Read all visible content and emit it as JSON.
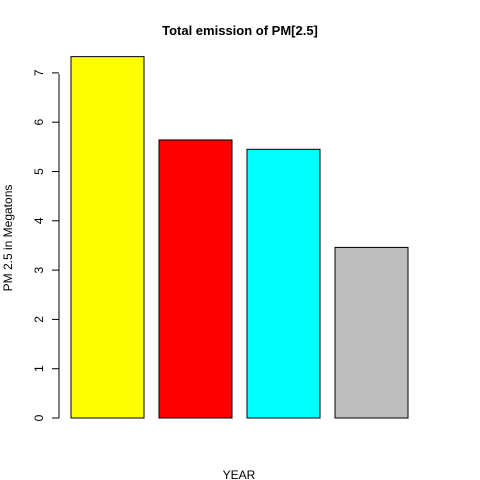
{
  "chart_data": {
    "type": "bar",
    "title": "Total emission of PM[2.5]",
    "xlabel": "YEAR",
    "ylabel": "PM 2.5 in Megatons",
    "values": [
      7.33,
      5.64,
      5.45,
      3.46
    ],
    "colors": [
      "#ffff00",
      "#ff0000",
      "#00ffff",
      "#bebebe"
    ],
    "yticks": [
      0,
      1,
      2,
      3,
      4,
      5,
      6,
      7
    ],
    "ylim": [
      0,
      7.5
    ],
    "grid": false,
    "legend": "none"
  }
}
